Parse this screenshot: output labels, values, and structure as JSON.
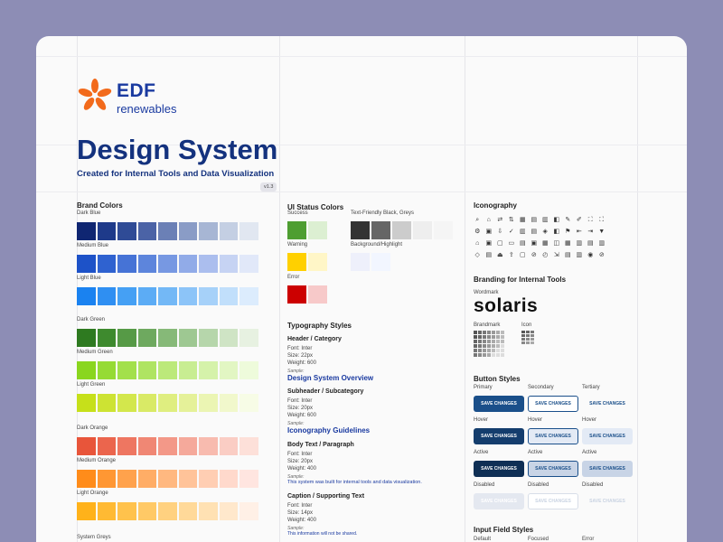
{
  "header": {
    "logo_edf": "EDF",
    "logo_renewables": "renewables",
    "title": "Design System",
    "subtitle": "Created for Internal Tools and Data Visualization",
    "version": "v1.3"
  },
  "brand_colors": {
    "heading": "Brand Colors",
    "groups": [
      {
        "label": "Dark Blue",
        "swatches": [
          "#0f2672",
          "#1e3a8a",
          "#2f4b96",
          "#4b63a6",
          "#6b80b6",
          "#8a9cc6",
          "#a7b6d4",
          "#c4cfe3",
          "#e1e7f1"
        ]
      },
      {
        "label": "Medium Blue",
        "swatches": [
          "#1d52c8",
          "#2f62d0",
          "#4673d6",
          "#5d85dc",
          "#7798e2",
          "#91abe8",
          "#abbeee",
          "#c6d3f3",
          "#e1e8f9"
        ]
      },
      {
        "label": "Light Blue",
        "swatches": [
          "#1a82f0",
          "#2f8ff2",
          "#45a0f4",
          "#5cacf5",
          "#73b8f6",
          "#8cc4f8",
          "#a6d1f9",
          "#c1dffb",
          "#dcecfd"
        ]
      },
      {
        "label": "Dark Green",
        "swatches": [
          "#2e7a20",
          "#3e8a2e",
          "#569a46",
          "#6ea95f",
          "#86b978",
          "#9ec892",
          "#b6d6ab",
          "#cfe4c5",
          "#e7f1e1"
        ]
      },
      {
        "label": "Medium Green",
        "swatches": [
          "#8ad61e",
          "#96db34",
          "#a3e04b",
          "#afe462",
          "#bce97a",
          "#c8ed92",
          "#d5f2aa",
          "#e2f6c3",
          "#eefbdb"
        ]
      },
      {
        "label": "Light Green",
        "swatches": [
          "#c6e01a",
          "#cde333",
          "#d3e74c",
          "#d9ea66",
          "#dfee80",
          "#e5f199",
          "#ebf5b3",
          "#f1f8cc",
          "#f7fce6"
        ]
      },
      {
        "label": "Dark Orange",
        "swatches": [
          "#e8553a",
          "#eb654d",
          "#ee7661",
          "#f08774",
          "#f39888",
          "#f5a99b",
          "#f8bbaf",
          "#facdc4",
          "#fde0d9"
        ]
      },
      {
        "label": "Medium Orange",
        "swatches": [
          "#ff8c1a",
          "#ff9733",
          "#ffa24c",
          "#ffad66",
          "#ffb880",
          "#ffc399",
          "#ffceb3",
          "#ffd9cc",
          "#ffe5e0"
        ]
      },
      {
        "label": "Light Orange",
        "swatches": [
          "#ffb21a",
          "#ffba33",
          "#ffc24c",
          "#ffc966",
          "#ffd180",
          "#ffd999",
          "#ffe1b3",
          "#ffe8cc",
          "#fff0e6"
        ]
      }
    ],
    "greys_label": "System Greys"
  },
  "ui_status": {
    "heading": "UI Status Colors",
    "groups": [
      {
        "label": "Success",
        "swatches": [
          "#4e9e31",
          "#dcefd2"
        ]
      },
      {
        "label": "Text-Friendly Black, Greys",
        "swatches": [
          "#333333",
          "#666666",
          "#cccccc",
          "#eeeeee",
          "#f5f5f5"
        ]
      },
      {
        "label": "Warning",
        "swatches": [
          "#ffd000",
          "#fff6c7"
        ]
      },
      {
        "label": "Background/Highlight",
        "swatches": [
          "#eef0fb",
          "#f2f6ff"
        ]
      },
      {
        "label": "Error",
        "swatches": [
          "#cc0000",
          "#f7c9c9"
        ]
      }
    ]
  },
  "typography": {
    "heading": "Typography Styles",
    "styles": [
      {
        "name": "Header / Category",
        "font": "Font: Inter",
        "size": "Size: 22px",
        "weight": "Weight: 600",
        "sample_label": "Sample:",
        "sample": "Design System Overview"
      },
      {
        "name": "Subheader / Subcategory",
        "font": "Font: Inter",
        "size": "Size: 20px",
        "weight": "Weight: 600",
        "sample_label": "Sample:",
        "sample": "Iconography Guidelines"
      },
      {
        "name": "Body Text / Paragraph",
        "font": "Font: Inter",
        "size": "Size: 20px",
        "weight": "Weight: 400",
        "sample_label": "Sample:",
        "sample": "This system was built for internal tools and data visualization."
      },
      {
        "name": "Caption / Supporting Text",
        "font": "Font: Inter",
        "size": "Size: 14px",
        "weight": "Weight: 400",
        "sample_label": "Sample:",
        "sample": "This information will not be shared."
      }
    ]
  },
  "iconography": {
    "heading": "Iconography",
    "icons": [
      "⌕",
      "⌂",
      "⇄",
      "⇅",
      "▦",
      "▤",
      "▥",
      "◧",
      "✎",
      "✐",
      "⛶",
      "⛶",
      "⚙",
      "▣",
      "⇩",
      "✓",
      "▥",
      "▤",
      "◈",
      "◧",
      "⚑",
      "⇤",
      "⇥",
      "▼",
      "⌂",
      "▣",
      "▢",
      "▭",
      "▤",
      "▣",
      "▦",
      "◫",
      "▦",
      "▥",
      "▤",
      "▥",
      "◇",
      "▤",
      "⏏",
      "⇪",
      "▢",
      "⊘",
      "◴",
      "⇲",
      "▤",
      "▥",
      "◉",
      "⊘"
    ]
  },
  "branding": {
    "heading": "Branding for Internal Tools",
    "wordmark_label": "Wordmark",
    "wordmark": "solaris",
    "brandmark_label": "Brandmark",
    "icon_label": "Icon"
  },
  "buttons": {
    "heading": "Button Styles",
    "label": "SAVE CHANGES",
    "columns": [
      "Primary",
      "Secondary",
      "Tertiary"
    ],
    "states": [
      "Hover",
      "Active",
      "Disabled"
    ]
  },
  "inputs": {
    "heading": "Input Field Styles",
    "columns": [
      "Default",
      "Focused",
      "Error"
    ]
  }
}
